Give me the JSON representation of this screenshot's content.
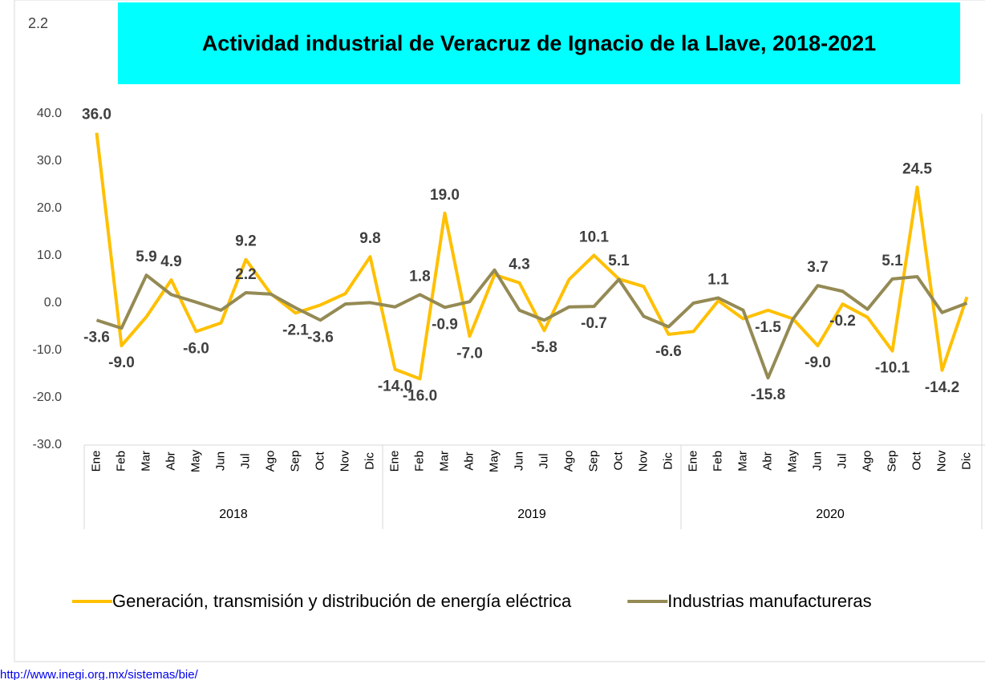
{
  "section": "2.2",
  "source": "http://www.inegi.org.mx/sistemas/bie/",
  "chart_data": {
    "type": "line",
    "title": "Actividad industrial de Veracruz de Ignacio de la Llave, 2018-2021",
    "categories": [
      "Ene",
      "Feb",
      "Mar",
      "Abr",
      "May",
      "Jun",
      "Jul",
      "Ago",
      "Sep",
      "Oct",
      "Nov",
      "Dic",
      "Ene",
      "Feb",
      "Mar",
      "Abr",
      "May",
      "Jun",
      "Jul",
      "Ago",
      "Sep",
      "Oct",
      "Nov",
      "Dic",
      "Ene",
      "Feb",
      "Mar",
      "Abr",
      "May",
      "Jun",
      "Jul",
      "Ago",
      "Sep",
      "Oct",
      "Nov",
      "Dic"
    ],
    "years": [
      "2018",
      "2019",
      "2020"
    ],
    "ylim": [
      -30,
      40
    ],
    "yticks": [
      {
        "value": -30,
        "label": "-30.0"
      },
      {
        "value": -20,
        "label": "-20.0"
      },
      {
        "value": -10,
        "label": "-10.0"
      },
      {
        "value": 0,
        "label": "0.0"
      },
      {
        "value": 10,
        "label": "10.0"
      },
      {
        "value": 20,
        "label": "20.0"
      },
      {
        "value": 30,
        "label": "30.0"
      },
      {
        "value": 40,
        "label": "40.0"
      }
    ],
    "grid": false,
    "series": [
      {
        "name": "Generación, transmisión y distribución de energía eléctrica",
        "color": "#FFC000",
        "values": [
          36.0,
          -9.0,
          -2.9,
          4.9,
          -6.0,
          -4.2,
          9.2,
          2.0,
          -2.1,
          -0.4,
          2.0,
          9.8,
          -14.0,
          -16.0,
          19.0,
          -7.0,
          6.0,
          4.3,
          -5.8,
          5.0,
          10.1,
          5.1,
          3.5,
          -6.6,
          -6.0,
          0.5,
          -3.3,
          -1.5,
          -3.3,
          -9.0,
          -0.2,
          -3.0,
          -10.1,
          24.5,
          -14.2,
          1.3
        ],
        "value_labels": [
          "36.0",
          "-9.0",
          null,
          "4.9",
          "-6.0",
          null,
          "9.2",
          null,
          "-2.1",
          null,
          null,
          "9.8",
          "-14.0",
          "-16.0",
          "19.0",
          "-7.0",
          null,
          "4.3",
          "-5.8",
          null,
          "10.1",
          "5.1",
          null,
          "-6.6",
          null,
          null,
          null,
          "-1.5",
          null,
          "-9.0",
          "-0.2",
          null,
          "-10.1",
          "24.5",
          "-14.2",
          null
        ]
      },
      {
        "name": "Industrias manufactureras",
        "color": "#948A54",
        "values": [
          -3.6,
          -5.3,
          5.9,
          1.8,
          0.2,
          -1.5,
          2.2,
          1.9,
          -1.0,
          -3.6,
          -0.2,
          0.1,
          -0.8,
          1.8,
          -0.9,
          0.3,
          7.0,
          -1.5,
          -3.6,
          -0.8,
          -0.7,
          5.0,
          -2.8,
          -5.0,
          0.0,
          1.1,
          -1.5,
          -15.8,
          -3.4,
          3.7,
          2.5,
          -1.3,
          5.1,
          5.6,
          -2.0,
          0.0
        ],
        "value_labels": [
          "-3.6",
          null,
          "5.9",
          null,
          null,
          null,
          "2.2",
          null,
          null,
          "-3.6",
          null,
          null,
          null,
          "1.8",
          "-0.9",
          null,
          null,
          null,
          null,
          null,
          "-0.7",
          null,
          null,
          null,
          null,
          "1.1",
          null,
          "-15.8",
          null,
          "3.7",
          null,
          null,
          "5.1",
          null,
          null,
          null
        ]
      }
    ]
  }
}
